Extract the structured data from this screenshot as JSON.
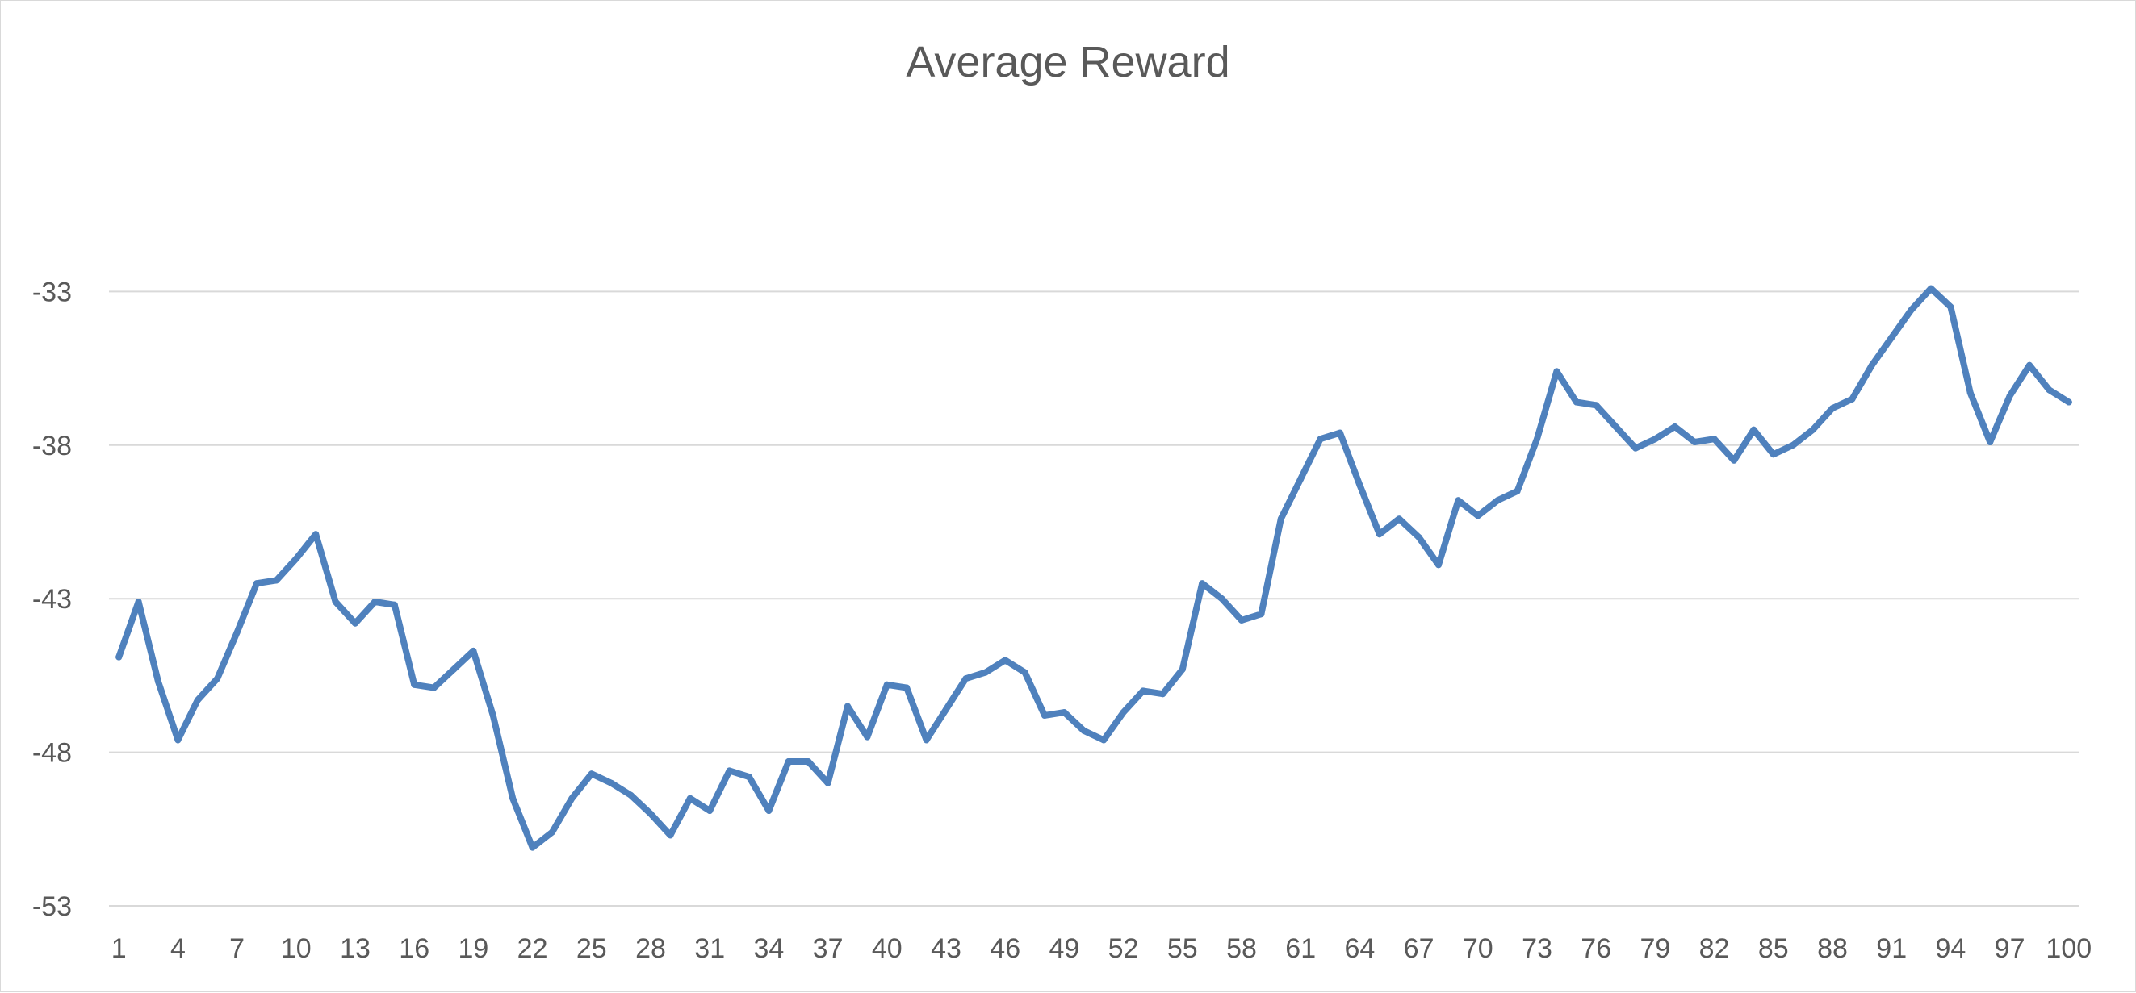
{
  "chart_data": {
    "type": "line",
    "title": "Average Reward",
    "xlabel": "",
    "ylabel": "",
    "ylim": [
      -53,
      -28
    ],
    "yticks": [
      -53,
      -48,
      -43,
      -38,
      -33
    ],
    "xtick_labels": [
      "1",
      "4",
      "7",
      "10",
      "13",
      "16",
      "19",
      "22",
      "25",
      "28",
      "31",
      "34",
      "37",
      "40",
      "43",
      "46",
      "49",
      "52",
      "55",
      "58",
      "61",
      "64",
      "67",
      "70",
      "73",
      "76",
      "79",
      "82",
      "85",
      "88",
      "91",
      "94",
      "97",
      "100"
    ],
    "grid": true,
    "legend": "none",
    "colors": {
      "line": "#4f81bd",
      "grid": "#d9d9d9",
      "text": "#595959"
    },
    "x": [
      1,
      2,
      3,
      4,
      5,
      6,
      7,
      8,
      9,
      10,
      11,
      12,
      13,
      14,
      15,
      16,
      17,
      18,
      19,
      20,
      21,
      22,
      23,
      24,
      25,
      26,
      27,
      28,
      29,
      30,
      31,
      32,
      33,
      34,
      35,
      36,
      37,
      38,
      39,
      40,
      41,
      42,
      43,
      44,
      45,
      46,
      47,
      48,
      49,
      50,
      51,
      52,
      53,
      54,
      55,
      56,
      57,
      58,
      59,
      60,
      61,
      62,
      63,
      64,
      65,
      66,
      67,
      68,
      69,
      70,
      71,
      72,
      73,
      74,
      75,
      76,
      77,
      78,
      79,
      80,
      81,
      82,
      83,
      84,
      85,
      86,
      87,
      88,
      89,
      90,
      91,
      92,
      93,
      94,
      95,
      96,
      97,
      98,
      99,
      100
    ],
    "series": [
      {
        "name": "",
        "values": [
          -44.9,
          -43.1,
          -45.7,
          -47.6,
          -46.3,
          -45.6,
          -44.1,
          -42.5,
          -42.4,
          -41.7,
          -40.9,
          -43.1,
          -43.8,
          -43.1,
          -43.2,
          -45.8,
          -45.9,
          -45.3,
          -44.7,
          -46.8,
          -49.5,
          -51.1,
          -50.6,
          -49.5,
          -48.7,
          -49.0,
          -49.4,
          -50.0,
          -50.7,
          -49.5,
          -49.9,
          -48.6,
          -48.8,
          -49.9,
          -48.3,
          -48.3,
          -49.0,
          -46.5,
          -47.5,
          -45.8,
          -45.9,
          -47.6,
          -46.6,
          -45.6,
          -45.4,
          -45.0,
          -45.4,
          -46.8,
          -46.7,
          -47.3,
          -47.6,
          -46.7,
          -46.0,
          -46.1,
          -45.3,
          -42.5,
          -43.0,
          -43.7,
          -43.5,
          -40.4,
          -39.1,
          -37.8,
          -37.6,
          -39.3,
          -40.9,
          -40.4,
          -41.0,
          -41.9,
          -39.8,
          -40.3,
          -39.8,
          -39.5,
          -37.8,
          -35.6,
          -36.6,
          -36.7,
          -37.4,
          -38.1,
          -37.8,
          -37.4,
          -37.9,
          -37.8,
          -38.5,
          -37.5,
          -38.3,
          -38.0,
          -37.5,
          -36.8,
          -36.5,
          -35.4,
          -34.5,
          -33.6,
          -32.9,
          -33.5,
          -36.3,
          -37.9,
          -36.4,
          -35.4,
          -36.2,
          -36.6
        ]
      }
    ]
  }
}
